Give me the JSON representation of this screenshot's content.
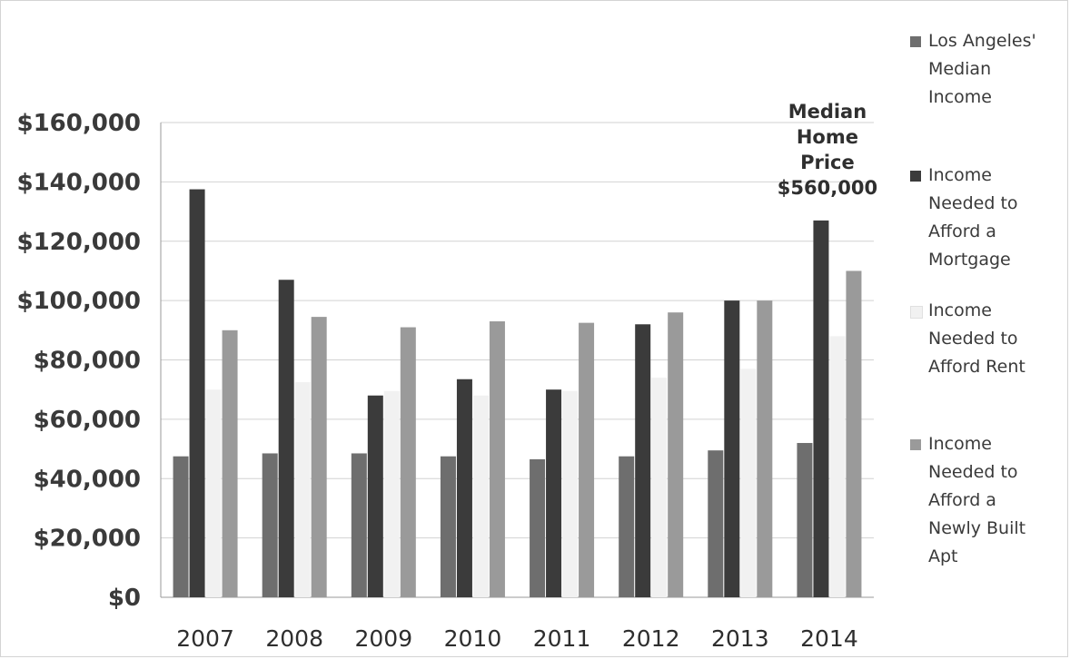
{
  "chart_data": {
    "type": "bar",
    "categories": [
      "2007",
      "2008",
      "2009",
      "2010",
      "2011",
      "2012",
      "2013",
      "2014"
    ],
    "series": [
      {
        "name": "Los Angeles' Median Income",
        "color": "#6e6e6e",
        "values": [
          47500,
          48500,
          48500,
          47500,
          46500,
          47500,
          49500,
          52000
        ]
      },
      {
        "name": "Income Needed to Afford a Mortgage",
        "color": "#3b3b3b",
        "values": [
          137500,
          107000,
          68000,
          73500,
          70000,
          92000,
          100000,
          127000
        ]
      },
      {
        "name": "Income Needed to Afford Rent",
        "color": "#f1f1f1",
        "values": [
          70000,
          72500,
          69500,
          68000,
          69500,
          74000,
          77000,
          88000
        ]
      },
      {
        "name": "Income Needed to Afford a Newly Built Apt",
        "color": "#9a9a9a",
        "values": [
          90000,
          94500,
          91000,
          93000,
          92500,
          96000,
          100000,
          110000
        ]
      }
    ],
    "y_ticks": [
      "$0",
      "$20,000",
      "$40,000",
      "$60,000",
      "$80,000",
      "$100,000",
      "$120,000",
      "$140,000",
      "$160,000"
    ],
    "ylim": [
      0,
      160000
    ],
    "ytick_step": 20000,
    "grid": true,
    "legend_position": "right",
    "annotation": [
      "Median",
      "Home",
      "Price",
      "$560,000"
    ],
    "title": "",
    "xlabel": "",
    "ylabel": ""
  },
  "legend": [
    {
      "lines": [
        "Los Angeles'",
        "Median",
        "Income"
      ]
    },
    {
      "lines": [
        "Income",
        "Needed to",
        "Afford a",
        "Mortgage"
      ]
    },
    {
      "lines": [
        "Income",
        "Needed to",
        "Afford Rent"
      ]
    },
    {
      "lines": [
        "Income",
        "Needed to",
        "Afford a",
        "Newly Built",
        "Apt"
      ]
    }
  ]
}
